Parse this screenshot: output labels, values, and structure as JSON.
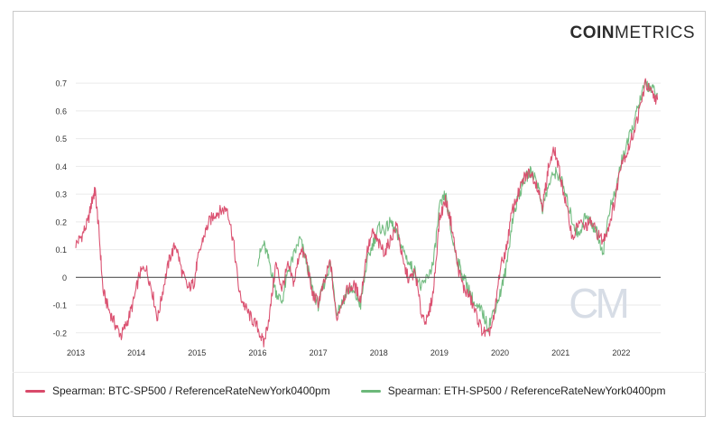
{
  "brand": {
    "part1": "COIN",
    "part2": "METRICS"
  },
  "colors": {
    "btc": "#d94a6a",
    "eth": "#6cb87a",
    "grid": "#eaeaea",
    "zero": "#555555",
    "axis_text": "#333333",
    "watermark": "#d7dde6"
  },
  "watermark": {
    "text": "CM"
  },
  "chart_data": {
    "type": "line",
    "title": "",
    "xlabel": "",
    "ylabel": "",
    "xlim": [
      2013.0,
      2022.65
    ],
    "ylim": [
      -0.23,
      0.72
    ],
    "x_ticks": [
      2013,
      2014,
      2015,
      2016,
      2017,
      2018,
      2019,
      2020,
      2021,
      2022
    ],
    "x_tick_labels": [
      "2013",
      "2014",
      "2015",
      "2016",
      "2017",
      "2018",
      "2019",
      "2020",
      "2021",
      "2022"
    ],
    "y_ticks": [
      -0.2,
      -0.1,
      0,
      0.1,
      0.2,
      0.3,
      0.4,
      0.5,
      0.6,
      0.7
    ],
    "y_tick_labels": [
      "-0.2",
      "-0.1",
      "0",
      "0.1",
      "0.2",
      "0.3",
      "0.4",
      "0.5",
      "0.6",
      "0.7"
    ],
    "grid": true,
    "legend_position": "bottom",
    "series": [
      {
        "name": "Spearman: BTC-SP500 / ReferenceRateNewYork0400pm",
        "color": "#d94a6a",
        "x": [
          2013.0,
          2013.1,
          2013.2,
          2013.28,
          2013.32,
          2013.38,
          2013.45,
          2013.55,
          2013.65,
          2013.75,
          2013.85,
          2013.95,
          2014.05,
          2014.15,
          2014.25,
          2014.35,
          2014.45,
          2014.55,
          2014.65,
          2014.75,
          2014.85,
          2014.95,
          2015.0,
          2015.1,
          2015.2,
          2015.3,
          2015.4,
          2015.5,
          2015.6,
          2015.7,
          2015.8,
          2015.9,
          2016.0,
          2016.1,
          2016.2,
          2016.3,
          2016.4,
          2016.5,
          2016.6,
          2016.7,
          2016.8,
          2016.9,
          2017.0,
          2017.1,
          2017.2,
          2017.3,
          2017.4,
          2017.5,
          2017.6,
          2017.7,
          2017.8,
          2017.9,
          2018.0,
          2018.1,
          2018.2,
          2018.3,
          2018.4,
          2018.5,
          2018.6,
          2018.7,
          2018.8,
          2018.9,
          2019.0,
          2019.1,
          2019.2,
          2019.3,
          2019.4,
          2019.5,
          2019.6,
          2019.7,
          2019.8,
          2019.9,
          2020.0,
          2020.1,
          2020.2,
          2020.3,
          2020.4,
          2020.5,
          2020.6,
          2020.7,
          2020.75,
          2020.8,
          2020.9,
          2021.0,
          2021.1,
          2021.2,
          2021.3,
          2021.4,
          2021.5,
          2021.6,
          2021.7,
          2021.8,
          2021.9,
          2022.0,
          2022.1,
          2022.2,
          2022.3,
          2022.4,
          2022.5,
          2022.6
        ],
        "values": [
          0.12,
          0.15,
          0.2,
          0.29,
          0.31,
          0.17,
          -0.05,
          -0.12,
          -0.17,
          -0.21,
          -0.16,
          -0.09,
          0.01,
          0.04,
          -0.04,
          -0.15,
          -0.03,
          0.07,
          0.12,
          0.02,
          -0.04,
          -0.02,
          0.05,
          0.14,
          0.2,
          0.23,
          0.24,
          0.25,
          0.13,
          -0.06,
          -0.11,
          -0.15,
          -0.18,
          -0.24,
          -0.13,
          0.05,
          -0.04,
          0.04,
          -0.02,
          0.1,
          0.07,
          -0.06,
          -0.09,
          -0.02,
          0.06,
          -0.15,
          -0.08,
          -0.04,
          -0.03,
          -0.08,
          0.09,
          0.16,
          0.12,
          0.09,
          0.14,
          0.19,
          0.05,
          -0.01,
          0.02,
          -0.13,
          -0.16,
          -0.05,
          0.21,
          0.28,
          0.19,
          0.04,
          -0.04,
          -0.07,
          -0.13,
          -0.19,
          -0.21,
          -0.15,
          0.03,
          0.1,
          0.24,
          0.3,
          0.36,
          0.38,
          0.34,
          0.26,
          0.32,
          0.4,
          0.46,
          0.36,
          0.25,
          0.14,
          0.2,
          0.18,
          0.2,
          0.16,
          0.13,
          0.19,
          0.28,
          0.42,
          0.45,
          0.52,
          0.6,
          0.7,
          0.66,
          0.64
        ]
      },
      {
        "name": "Spearman: ETH-SP500 / ReferenceRateNewYork0400pm",
        "color": "#6cb87a",
        "x": [
          2016.0,
          2016.1,
          2016.2,
          2016.3,
          2016.4,
          2016.5,
          2016.6,
          2016.7,
          2016.8,
          2016.9,
          2017.0,
          2017.1,
          2017.2,
          2017.3,
          2017.4,
          2017.5,
          2017.6,
          2017.7,
          2017.8,
          2017.9,
          2018.0,
          2018.1,
          2018.2,
          2018.3,
          2018.4,
          2018.5,
          2018.6,
          2018.7,
          2018.8,
          2018.9,
          2019.0,
          2019.1,
          2019.2,
          2019.3,
          2019.4,
          2019.5,
          2019.6,
          2019.7,
          2019.8,
          2019.9,
          2020.0,
          2020.1,
          2020.2,
          2020.3,
          2020.4,
          2020.5,
          2020.6,
          2020.7,
          2020.8,
          2020.9,
          2021.0,
          2021.1,
          2021.2,
          2021.3,
          2021.4,
          2021.5,
          2021.6,
          2021.7,
          2021.8,
          2021.9,
          2022.0,
          2022.1,
          2022.2,
          2022.3,
          2022.4,
          2022.5,
          2022.6
        ],
        "values": [
          0.06,
          0.12,
          0.05,
          -0.05,
          -0.09,
          0.02,
          0.08,
          0.14,
          0.06,
          -0.04,
          -0.1,
          -0.02,
          0.05,
          -0.12,
          -0.09,
          -0.04,
          -0.06,
          -0.1,
          0.05,
          0.12,
          0.18,
          0.17,
          0.2,
          0.15,
          0.1,
          0.05,
          0.02,
          -0.04,
          0.0,
          0.05,
          0.25,
          0.3,
          0.15,
          0.06,
          0.0,
          -0.05,
          -0.11,
          -0.12,
          -0.18,
          -0.12,
          -0.06,
          0.03,
          0.2,
          0.29,
          0.35,
          0.38,
          0.36,
          0.25,
          0.33,
          0.38,
          0.36,
          0.28,
          0.2,
          0.15,
          0.22,
          0.2,
          0.16,
          0.09,
          0.24,
          0.3,
          0.42,
          0.48,
          0.55,
          0.63,
          0.7,
          0.68,
          0.66
        ]
      }
    ]
  }
}
